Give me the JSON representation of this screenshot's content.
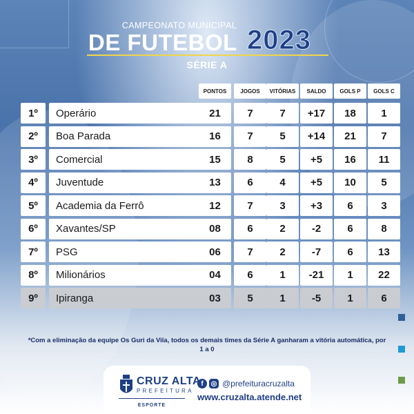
{
  "header": {
    "top_line": "CAMPEONATO MUNICIPAL",
    "title": "DE FUTEBOL",
    "year": "2023",
    "series": "SÉRIE A"
  },
  "table": {
    "columns": [
      "PONTOS",
      "JOGOS",
      "VITÓRIAS",
      "SALDO",
      "GOLS P",
      "GOLS C"
    ],
    "rows": [
      {
        "pos": "1º",
        "team": "Operário",
        "pontos": "21",
        "jogos": "7",
        "vitorias": "7",
        "saldo": "+17",
        "gols_p": "18",
        "gols_c": "1"
      },
      {
        "pos": "2º",
        "team": "Boa Parada",
        "pontos": "16",
        "jogos": "7",
        "vitorias": "5",
        "saldo": "+14",
        "gols_p": "21",
        "gols_c": "7"
      },
      {
        "pos": "3º",
        "team": "Comercial",
        "pontos": "15",
        "jogos": "8",
        "vitorias": "5",
        "saldo": "+5",
        "gols_p": "16",
        "gols_c": "11"
      },
      {
        "pos": "4º",
        "team": "Juventude",
        "pontos": "13",
        "jogos": "6",
        "vitorias": "4",
        "saldo": "+5",
        "gols_p": "10",
        "gols_c": "5"
      },
      {
        "pos": "5º",
        "team": "Academia da Ferrô",
        "pontos": "12",
        "jogos": "7",
        "vitorias": "3",
        "saldo": "+3",
        "gols_p": "6",
        "gols_c": "3"
      },
      {
        "pos": "6º",
        "team": "Xavantes/SP",
        "pontos": "08",
        "jogos": "6",
        "vitorias": "2",
        "saldo": "-2",
        "gols_p": "6",
        "gols_c": "8"
      },
      {
        "pos": "7º",
        "team": "PSG",
        "pontos": "06",
        "jogos": "7",
        "vitorias": "2",
        "saldo": "-7",
        "gols_p": "6",
        "gols_c": "13"
      },
      {
        "pos": "8º",
        "team": "Milionários",
        "pontos": "04",
        "jogos": "6",
        "vitorias": "1",
        "saldo": "-21",
        "gols_p": "1",
        "gols_c": "22"
      },
      {
        "pos": "9º",
        "team": "Ipiranga",
        "pontos": "03",
        "jogos": "5",
        "vitorias": "1",
        "saldo": "-5",
        "gols_p": "1",
        "gols_c": "6"
      }
    ]
  },
  "note": "*Com a eliminação da equipe Os Guri da Vila, todos os demais times da Série A ganharam a vitória automática, por 1 a 0",
  "footer": {
    "logo_main": "CRUZ ALTA",
    "logo_sub": "PREFEITURA",
    "logo_department": "ESPORTE",
    "social_handle": "@prefeituracruzalta",
    "website": "www.cruzalta.atende.net",
    "icons": [
      "facebook-icon",
      "instagram-icon"
    ]
  },
  "colors": {
    "brand_blue": "#1e3f86",
    "accent_gold": "#f0d54a",
    "side_squares": [
      "#2f5f99",
      "#1e9ad6",
      "#6f9a4a"
    ]
  }
}
